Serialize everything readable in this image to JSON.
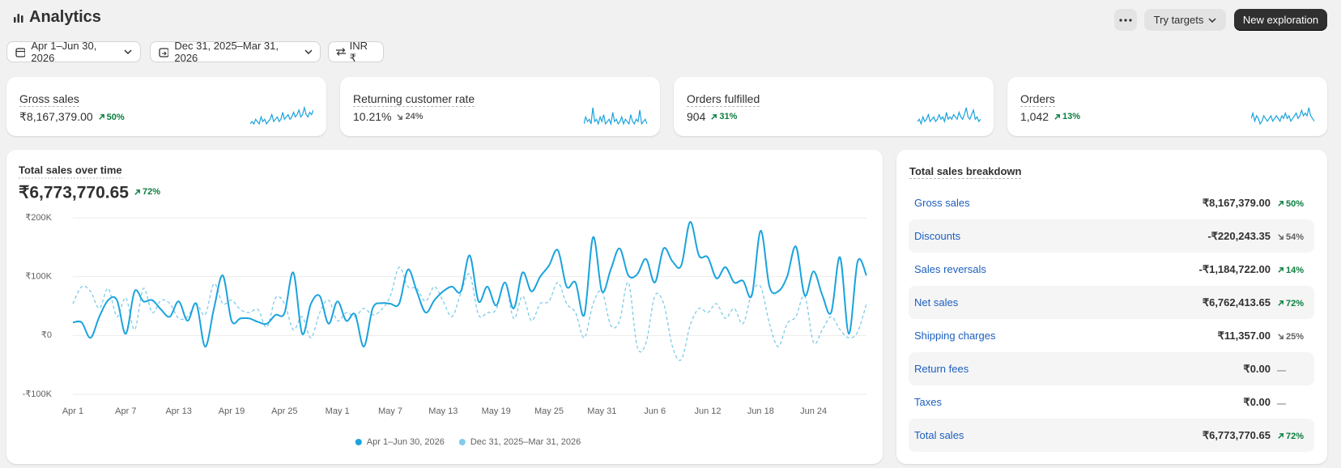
{
  "header": {
    "title": "Analytics",
    "buttons": [
      "Try targets",
      "New exploration"
    ]
  },
  "filters": [
    "Apr 1–Jun 30, 2026",
    "Dec 31, 2025–Mar 31, 2026",
    "INR ₹"
  ],
  "kpis": [
    {
      "label": "Gross sales",
      "value": "₹8,167,379.00",
      "change": "50%",
      "trend": "up",
      "spark": [
        3,
        4,
        3,
        5,
        4,
        3,
        6,
        4,
        5,
        3,
        4,
        5,
        7,
        4,
        5,
        6,
        4,
        5,
        8,
        5,
        6,
        7,
        5,
        6,
        8,
        6,
        7,
        9,
        6,
        7,
        10,
        7,
        6,
        8,
        7,
        9
      ]
    },
    {
      "label": "Returning customer rate",
      "value": "10.21%",
      "change": "24%",
      "trend": "down",
      "spark": [
        2,
        5,
        3,
        4,
        2,
        9,
        3,
        4,
        2,
        5,
        3,
        6,
        2,
        3,
        4,
        2,
        7,
        3,
        4,
        2,
        3,
        5,
        2,
        4,
        3,
        2,
        6,
        3,
        2,
        4,
        3,
        8,
        2,
        3,
        4,
        2
      ]
    },
    {
      "label": "Orders fulfilled",
      "value": "904",
      "change": "31%",
      "trend": "up",
      "spark": [
        3,
        4,
        2,
        5,
        3,
        4,
        6,
        3,
        4,
        5,
        3,
        4,
        6,
        4,
        5,
        3,
        7,
        4,
        5,
        4,
        6,
        5,
        4,
        7,
        5,
        4,
        6,
        9,
        5,
        4,
        6,
        8,
        4,
        5,
        3,
        4
      ]
    },
    {
      "label": "Orders",
      "value": "1,042",
      "change": "13%",
      "trend": "up",
      "spark": [
        5,
        7,
        4,
        6,
        5,
        3,
        4,
        6,
        5,
        4,
        5,
        6,
        4,
        5,
        6,
        5,
        4,
        6,
        5,
        7,
        5,
        6,
        4,
        5,
        6,
        7,
        5,
        6,
        8,
        6,
        7,
        6,
        9,
        6,
        5,
        4
      ]
    }
  ],
  "chart_data": {
    "type": "line",
    "title": "Total sales over time",
    "total": "₹6,773,770.65",
    "change": "72%",
    "trend": "up",
    "categories": [
      "Apr 1",
      null,
      null,
      null,
      null,
      null,
      "Apr 7",
      null,
      null,
      null,
      null,
      null,
      "Apr 13",
      null,
      null,
      null,
      null,
      null,
      "Apr 19",
      null,
      null,
      null,
      null,
      null,
      "Apr 25",
      null,
      null,
      null,
      null,
      null,
      "May 1",
      null,
      null,
      null,
      null,
      null,
      "May 7",
      null,
      null,
      null,
      null,
      null,
      "May 13",
      null,
      null,
      null,
      null,
      null,
      "May 19",
      null,
      null,
      null,
      null,
      null,
      "May 25",
      null,
      null,
      null,
      null,
      null,
      "May 31",
      null,
      null,
      null,
      null,
      null,
      "Jun 6",
      null,
      null,
      null,
      null,
      null,
      "Jun 12",
      null,
      null,
      null,
      null,
      null,
      "Jun 18",
      null,
      null,
      null,
      null,
      null,
      "Jun 24",
      null,
      null,
      null,
      null,
      null,
      null
    ],
    "series": [
      {
        "name": "Apr 1–Jun 30, 2026",
        "color": "#1aa3dd",
        "dashed": false,
        "values": [
          22000,
          22000,
          -4000,
          32000,
          60000,
          60000,
          3000,
          75000,
          58000,
          60000,
          44000,
          32000,
          58000,
          25000,
          54000,
          -19000,
          46000,
          102000,
          25000,
          29000,
          29000,
          23000,
          20000,
          35000,
          38000,
          107000,
          3000,
          54000,
          67000,
          20000,
          58000,
          25000,
          36000,
          -19000,
          46000,
          55000,
          54000,
          54000,
          112000,
          75000,
          39000,
          60000,
          75000,
          83000,
          75000,
          136000,
          58000,
          83000,
          51000,
          90000,
          46000,
          107000,
          75000,
          100000,
          119000,
          145000,
          83000,
          90000,
          35000,
          167000,
          75000,
          112000,
          148000,
          102000,
          104000,
          130000,
          90000,
          148000,
          126000,
          119000,
          193000,
          136000,
          133000,
          97000,
          116000,
          90000,
          93000,
          68000,
          178000,
          83000,
          75000,
          100000,
          151000,
          68000,
          109000,
          68000,
          39000,
          133000,
          3000,
          126000,
          102000
        ]
      },
      {
        "name": "Dec 31, 2025–Mar 31, 2026",
        "color": "#7fcbea",
        "dashed": true,
        "values": [
          54000,
          83000,
          75000,
          46000,
          80000,
          32000,
          64000,
          10000,
          80000,
          39000,
          60000,
          54000,
          29000,
          32000,
          54000,
          35000,
          88000,
          54000,
          60000,
          44000,
          39000,
          44000,
          14000,
          64000,
          54000,
          10000,
          32000,
          -4000,
          39000,
          60000,
          25000,
          39000,
          32000,
          46000,
          35000,
          44000,
          67000,
          116000,
          83000,
          80000,
          58000,
          83000,
          58000,
          32000,
          72000,
          104000,
          35000,
          39000,
          44000,
          90000,
          29000,
          67000,
          25000,
          54000,
          58000,
          90000,
          54000,
          39000,
          -4000,
          54000,
          75000,
          17000,
          25000,
          90000,
          -19000,
          -12000,
          67000,
          54000,
          -19000,
          -41000,
          17000,
          46000,
          39000,
          54000,
          29000,
          46000,
          20000,
          72000,
          83000,
          20000,
          -19000,
          20000,
          32000,
          67000,
          -12000,
          10000,
          32000,
          10000,
          -4000,
          6000,
          54000
        ]
      }
    ],
    "ylim": [
      -100000,
      200000
    ],
    "yticks": [
      {
        "value": -100000,
        "label": "-₹100K"
      },
      {
        "value": 0,
        "label": "₹0"
      },
      {
        "value": 100000,
        "label": "₹100K"
      },
      {
        "value": 200000,
        "label": "₹200K"
      }
    ],
    "grid": true,
    "legend": "bottom"
  },
  "breakdown": {
    "title": "Total sales breakdown",
    "rows": [
      {
        "label": "Gross sales",
        "value": "₹8,167,379.00",
        "change": "50%",
        "trend": "up"
      },
      {
        "label": "Discounts",
        "value": "-₹220,243.35",
        "change": "54%",
        "trend": "down"
      },
      {
        "label": "Sales reversals",
        "value": "-₹1,184,722.00",
        "change": "14%",
        "trend": "up"
      },
      {
        "label": "Net sales",
        "value": "₹6,762,413.65",
        "change": "72%",
        "trend": "up"
      },
      {
        "label": "Shipping charges",
        "value": "₹11,357.00",
        "change": "25%",
        "trend": "down"
      },
      {
        "label": "Return fees",
        "value": "₹0.00",
        "change": "—",
        "trend": "none"
      },
      {
        "label": "Taxes",
        "value": "₹0.00",
        "change": "—",
        "trend": "none"
      },
      {
        "label": "Total sales",
        "value": "₹6,773,770.65",
        "change": "72%",
        "trend": "up"
      }
    ]
  }
}
